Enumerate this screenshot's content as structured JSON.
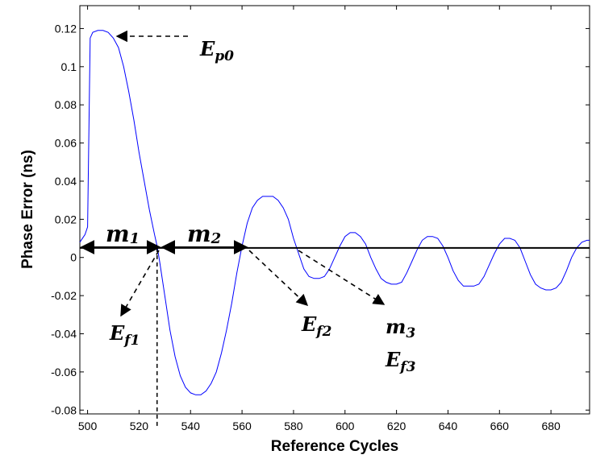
{
  "chart_data": {
    "type": "line",
    "title": "",
    "xlabel": "Reference Cycles",
    "ylabel": "Phase Error (ns)",
    "xlim": [
      497,
      695
    ],
    "ylim": [
      -0.082,
      0.132
    ],
    "grid": false,
    "x_ticks": [
      500,
      520,
      540,
      560,
      580,
      600,
      620,
      640,
      660,
      680
    ],
    "x_tick_labels": [
      "500",
      "520",
      "540",
      "560",
      "580",
      "600",
      "620",
      "640",
      "660",
      "680"
    ],
    "y_ticks": [
      -0.08,
      -0.06,
      -0.04,
      -0.02,
      0,
      0.02,
      0.04,
      0.06,
      0.08,
      0.1,
      0.12
    ],
    "y_tick_labels": [
      "-0.08",
      "-0.06",
      "-0.04",
      "-0.02",
      "0",
      "0.02",
      "0.04",
      "0.06",
      "0.08",
      "0.1",
      "0.12"
    ],
    "series": [
      {
        "color": "#0000ff",
        "x": [
          497,
          499,
          500,
          501,
          502,
          504,
          506,
          508,
          510,
          512,
          514,
          516,
          518,
          520,
          522,
          524,
          526,
          527,
          528,
          530,
          532,
          534,
          536,
          538,
          540,
          542,
          544,
          546,
          548,
          550,
          552,
          554,
          556,
          558,
          560,
          562,
          564,
          566,
          568,
          570,
          572,
          574,
          576,
          578,
          580,
          582,
          584,
          586,
          588,
          590,
          592,
          594,
          596,
          598,
          600,
          602,
          604,
          606,
          608,
          610,
          612,
          614,
          616,
          618,
          620,
          622,
          624,
          626,
          628,
          630,
          632,
          634,
          636,
          638,
          640,
          642,
          644,
          646,
          648,
          650,
          652,
          654,
          656,
          658,
          660,
          662,
          664,
          666,
          668,
          670,
          672,
          674,
          676,
          678,
          680,
          682,
          684,
          686,
          688,
          690,
          692,
          694,
          695
        ],
        "y": [
          0.008,
          0.012,
          0.016,
          0.115,
          0.118,
          0.119,
          0.119,
          0.118,
          0.115,
          0.11,
          0.1,
          0.087,
          0.072,
          0.055,
          0.04,
          0.025,
          0.012,
          0.006,
          -0.002,
          -0.02,
          -0.038,
          -0.052,
          -0.062,
          -0.068,
          -0.071,
          -0.072,
          -0.072,
          -0.07,
          -0.066,
          -0.06,
          -0.05,
          -0.038,
          -0.024,
          -0.008,
          0.006,
          0.018,
          0.026,
          0.03,
          0.032,
          0.032,
          0.032,
          0.03,
          0.026,
          0.02,
          0.01,
          0.002,
          -0.006,
          -0.01,
          -0.011,
          -0.011,
          -0.01,
          -0.006,
          0.0,
          0.006,
          0.011,
          0.013,
          0.013,
          0.011,
          0.007,
          0.0,
          -0.006,
          -0.011,
          -0.013,
          -0.014,
          -0.014,
          -0.013,
          -0.008,
          -0.002,
          0.004,
          0.009,
          0.011,
          0.011,
          0.01,
          0.006,
          0.0,
          -0.007,
          -0.012,
          -0.015,
          -0.015,
          -0.015,
          -0.014,
          -0.01,
          -0.004,
          0.002,
          0.007,
          0.01,
          0.01,
          0.009,
          0.005,
          -0.002,
          -0.009,
          -0.014,
          -0.016,
          -0.017,
          -0.017,
          -0.016,
          -0.013,
          -0.007,
          0.0,
          0.005,
          0.008,
          0.009,
          0.009
        ]
      }
    ],
    "reference_line_y": 0.005,
    "vertical_marker_x": 527,
    "annotations": {
      "ep0": "E",
      "ep0_sub": "p0",
      "m1": "m",
      "m1_sub": "1",
      "m2": "m",
      "m2_sub": "2",
      "ef1": "E",
      "ef1_sub": "f1",
      "ef2": "E",
      "ef2_sub": "f2",
      "m3": "m",
      "m3_sub": "3",
      "ef3": "E",
      "ef3_sub": "f3"
    }
  }
}
